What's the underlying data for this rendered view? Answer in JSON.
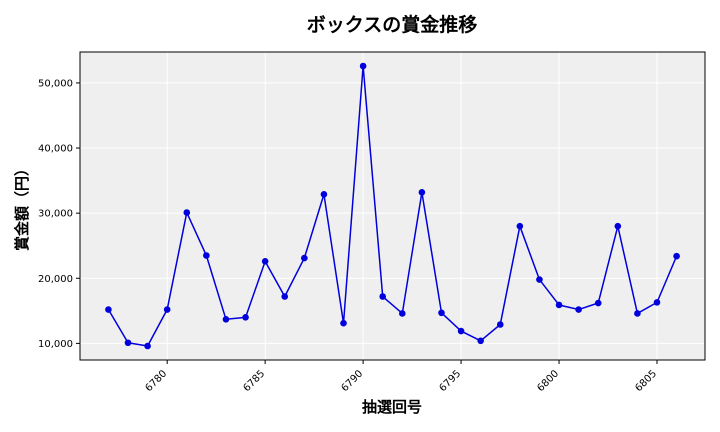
{
  "chart_data": {
    "type": "line",
    "title": "ボックスの賞金推移",
    "xlabel": "抽選回号",
    "ylabel": "賞金額（円）",
    "x": [
      6777,
      6778,
      6779,
      6780,
      6781,
      6782,
      6783,
      6784,
      6785,
      6786,
      6787,
      6788,
      6789,
      6790,
      6791,
      6792,
      6793,
      6794,
      6795,
      6796,
      6797,
      6798,
      6799,
      6800,
      6801,
      6802,
      6803,
      6804,
      6805,
      6806
    ],
    "series": [
      {
        "values": [
          15200,
          10100,
          9600,
          15200,
          30100,
          23500,
          13700,
          14000,
          22600,
          17200,
          23100,
          32900,
          13100,
          52600,
          17200,
          14600,
          33200,
          14700,
          11900,
          10400,
          12900,
          28000,
          19800,
          15900,
          15200,
          16200,
          28000,
          14600,
          16300,
          23400
        ],
        "color": "#0000dd"
      }
    ],
    "xticks": [
      6780,
      6785,
      6790,
      6795,
      6800,
      6805
    ],
    "xtick_labels": [
      "6780",
      "6785",
      "6790",
      "6795",
      "6800",
      "6805"
    ],
    "yticks": [
      10000,
      20000,
      30000,
      40000,
      50000
    ],
    "ytick_labels": [
      "10,000",
      "20,000",
      "30,000",
      "40,000",
      "50,000"
    ],
    "xlim": [
      6775.55,
      6807.45
    ],
    "ylim": [
      7450,
      54750
    ],
    "grid": true,
    "background": "#efefef"
  }
}
